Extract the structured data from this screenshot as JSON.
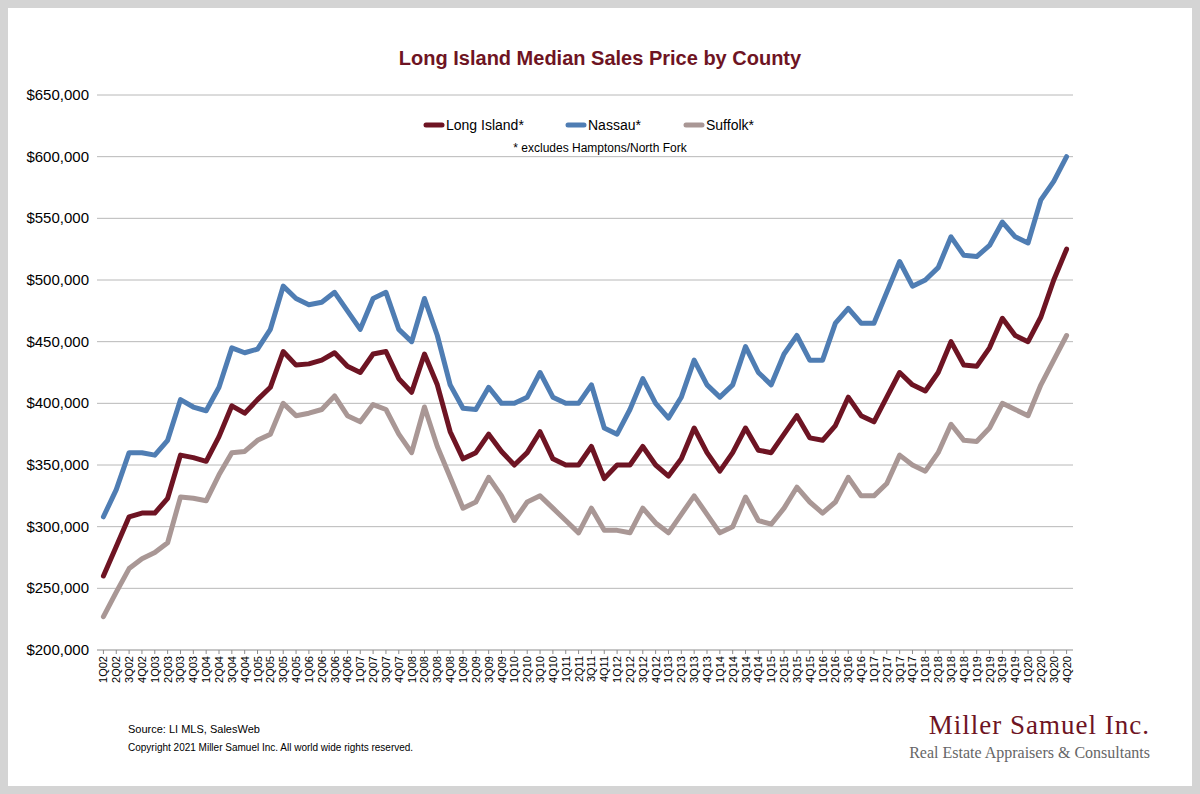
{
  "chart_data": {
    "type": "line",
    "title": "Long Island Median Sales Price by County",
    "categories": [
      "1Q02",
      "2Q02",
      "3Q02",
      "4Q02",
      "1Q03",
      "2Q03",
      "3Q03",
      "4Q03",
      "1Q04",
      "2Q04",
      "3Q04",
      "4Q04",
      "1Q05",
      "2Q05",
      "3Q05",
      "4Q05",
      "1Q06",
      "2Q06",
      "3Q06",
      "4Q06",
      "1Q07",
      "2Q07",
      "3Q07",
      "4Q07",
      "1Q08",
      "2Q08",
      "3Q08",
      "4Q08",
      "1Q09",
      "2Q09",
      "3Q09",
      "4Q09",
      "1Q10",
      "2Q10",
      "3Q10",
      "4Q10",
      "1Q11",
      "2Q11",
      "3Q11",
      "4Q11",
      "1Q12",
      "2Q12",
      "3Q12",
      "4Q12",
      "1Q13",
      "2Q13",
      "3Q13",
      "4Q13",
      "1Q14",
      "2Q14",
      "3Q14",
      "4Q14",
      "1Q15",
      "2Q15",
      "3Q15",
      "4Q15",
      "1Q16",
      "2Q16",
      "3Q16",
      "4Q16",
      "1Q17",
      "2Q17",
      "3Q17",
      "4Q17",
      "1Q18",
      "2Q18",
      "3Q18",
      "4Q18",
      "1Q19",
      "2Q19",
      "3Q19",
      "4Q19",
      "1Q20",
      "2Q20",
      "3Q20",
      "4Q20"
    ],
    "series": [
      {
        "name": "Long Island*",
        "color": "#6e1423",
        "values": [
          260000,
          284000,
          308000,
          311000,
          311000,
          323000,
          358000,
          356000,
          353000,
          373000,
          398000,
          392000,
          403000,
          413000,
          442000,
          431000,
          432000,
          435000,
          441000,
          430000,
          425000,
          440000,
          442000,
          420000,
          409000,
          440000,
          415000,
          377000,
          355000,
          360000,
          375000,
          361000,
          350000,
          360000,
          377000,
          355000,
          350000,
          350000,
          365000,
          339000,
          350000,
          350000,
          365000,
          350000,
          341000,
          355000,
          380000,
          360000,
          345000,
          360000,
          380000,
          362000,
          360000,
          375000,
          390000,
          372000,
          370000,
          382000,
          405000,
          390000,
          385000,
          405000,
          425000,
          415000,
          410000,
          425000,
          450000,
          431000,
          430000,
          445000,
          469000,
          455000,
          450000,
          470000,
          500000,
          525000
        ]
      },
      {
        "name": "Nassau*",
        "color": "#4f7db3",
        "values": [
          308000,
          330000,
          360000,
          360000,
          358000,
          370000,
          403000,
          397000,
          394000,
          413000,
          445000,
          441000,
          444000,
          460000,
          495000,
          485000,
          480000,
          482000,
          490000,
          475000,
          460000,
          485000,
          490000,
          460000,
          450000,
          485000,
          455000,
          415000,
          396000,
          395000,
          413000,
          400000,
          400000,
          405000,
          425000,
          405000,
          400000,
          400000,
          415000,
          380000,
          375000,
          395000,
          420000,
          400000,
          388000,
          405000,
          435000,
          415000,
          405000,
          415000,
          446000,
          425000,
          415000,
          440000,
          455000,
          435000,
          435000,
          465000,
          477000,
          465000,
          465000,
          490000,
          515000,
          495000,
          500000,
          510000,
          535000,
          520000,
          519000,
          528000,
          547000,
          535000,
          530000,
          565000,
          580000,
          600000
        ]
      },
      {
        "name": "Suffolk*",
        "color": "#a99795",
        "values": [
          227000,
          247000,
          266000,
          274000,
          279000,
          287000,
          324000,
          323000,
          321000,
          342000,
          360000,
          361000,
          370000,
          375000,
          400000,
          390000,
          392000,
          395000,
          406000,
          390000,
          385000,
          399000,
          395000,
          375000,
          360000,
          397000,
          365000,
          340000,
          315000,
          320000,
          340000,
          325000,
          305000,
          320000,
          325000,
          315000,
          305000,
          295000,
          315000,
          297000,
          297000,
          295000,
          315000,
          303000,
          295000,
          310000,
          325000,
          310000,
          295000,
          300000,
          324000,
          305000,
          302000,
          315000,
          332000,
          320000,
          311000,
          320000,
          340000,
          325000,
          325000,
          335000,
          358000,
          350000,
          345000,
          360000,
          383000,
          370000,
          369000,
          380000,
          400000,
          395000,
          390000,
          415000,
          435000,
          455000
        ]
      }
    ],
    "ylim": [
      200000,
      650000
    ],
    "yticks": [
      {
        "value": 200000,
        "label": "$200,000"
      },
      {
        "value": 250000,
        "label": "$250,000"
      },
      {
        "value": 300000,
        "label": "$300,000"
      },
      {
        "value": 350000,
        "label": "$350,000"
      },
      {
        "value": 400000,
        "label": "$400,000"
      },
      {
        "value": 450000,
        "label": "$450,000"
      },
      {
        "value": 500000,
        "label": "$500,000"
      },
      {
        "value": 550000,
        "label": "$550,000"
      },
      {
        "value": 600000,
        "label": "$600,000"
      },
      {
        "value": 650000,
        "label": "$650,000"
      }
    ],
    "grid": true,
    "legend": "top",
    "annotations": [
      "*  excludes Hamptons/North Fork",
      "Source:  LI MLS, SalesWeb",
      "Copyright 2021 Miller Samuel Inc.  All world wide rights reserved.",
      "Miller Samuel Inc.",
      "Real Estate Appraisers & Consultants"
    ]
  }
}
